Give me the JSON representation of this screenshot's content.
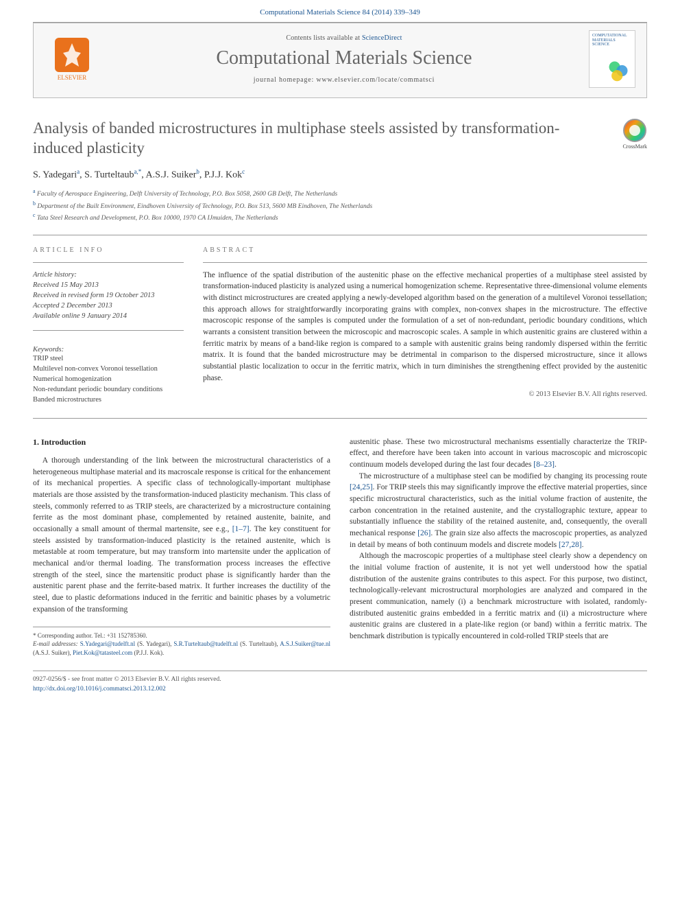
{
  "citation": "Computational Materials Science 84 (2014) 339–349",
  "header": {
    "contents_prefix": "Contents lists available at ",
    "contents_link": "ScienceDirect",
    "journal_title": "Computational Materials Science",
    "homepage_prefix": "journal homepage: ",
    "homepage_url": "www.elsevier.com/locate/commatsci",
    "publisher": "ELSEVIER",
    "thumb_label": "COMPUTATIONAL MATERIALS SCIENCE"
  },
  "crossmark_label": "CrossMark",
  "title": "Analysis of banded microstructures in multiphase steels assisted by transformation-induced plasticity",
  "authors_html": "S. Yadegari<sup>a</sup>, S. Turteltaub<sup>a,*</sup>, A.S.J. Suiker<sup>b</sup>, P.J.J. Kok<sup>c</sup>",
  "affiliations": [
    {
      "sup": "a",
      "text": "Faculty of Aerospace Engineering, Delft University of Technology, P.O. Box 5058, 2600 GB Delft, The Netherlands"
    },
    {
      "sup": "b",
      "text": "Department of the Built Environment, Eindhoven University of Technology, P.O. Box 513, 5600 MB Eindhoven, The Netherlands"
    },
    {
      "sup": "c",
      "text": "Tata Steel Research and Development, P.O. Box 10000, 1970 CA IJmuiden, The Netherlands"
    }
  ],
  "info_head": "ARTICLE INFO",
  "abs_head": "ABSTRACT",
  "history": {
    "label": "Article history:",
    "received": "Received 15 May 2013",
    "revised": "Received in revised form 19 October 2013",
    "accepted": "Accepted 2 December 2013",
    "online": "Available online 9 January 2014"
  },
  "keywords_label": "Keywords:",
  "keywords": [
    "TRIP steel",
    "Multilevel non-convex Voronoi tessellation",
    "Numerical homogenization",
    "Non-redundant periodic boundary conditions",
    "Banded microstructures"
  ],
  "abstract": "The influence of the spatial distribution of the austenitic phase on the effective mechanical properties of a multiphase steel assisted by transformation-induced plasticity is analyzed using a numerical homogenization scheme. Representative three-dimensional volume elements with distinct microstructures are created applying a newly-developed algorithm based on the generation of a multilevel Voronoi tessellation; this approach allows for straightforwardly incorporating grains with complex, non-convex shapes in the microstructure. The effective macroscopic response of the samples is computed under the formulation of a set of non-redundant, periodic boundary conditions, which warrants a consistent transition between the microscopic and macroscopic scales. A sample in which austenitic grains are clustered within a ferritic matrix by means of a band-like region is compared to a sample with austenitic grains being randomly dispersed within the ferritic matrix. It is found that the banded microstructure may be detrimental in comparison to the dispersed microstructure, since it allows substantial plastic localization to occur in the ferritic matrix, which in turn diminishes the strengthening effect provided by the austenitic phase.",
  "copyright": "© 2013 Elsevier B.V. All rights reserved.",
  "intro_head": "1. Introduction",
  "intro_p1_pre": "A thorough understanding of the link between the microstructural characteristics of a heterogeneous multiphase material and its macroscale response is critical for the enhancement of its mechanical properties. A specific class of technologically-important multiphase materials are those assisted by the transformation-induced plasticity mechanism. This class of steels, commonly referred to as TRIP steels, are characterized by a microstructure containing ferrite as the most dominant phase, complemented by retained austenite, bainite, and occasionally a small amount of thermal martensite, see e.g., ",
  "intro_p1_ref1": "[1–7]",
  "intro_p1_post": ". The key constituent for steels assisted by transformation-induced plasticity is the retained austenite, which is metastable at room temperature, but may transform into martensite under the application of mechanical and/or thermal loading. The transformation process increases the effective strength of the steel, since the martensitic product phase is significantly harder than the austenitic parent phase and the ferrite-based matrix. It further increases the ductility of the steel, due to plastic deformations induced in the ferritic and bainitic phases by a volumetric expansion of the transforming",
  "col2_p1_pre": "austenitic phase. These two microstructural mechanisms essentially characterize the TRIP-effect, and therefore have been taken into account in various macroscopic and microscopic continuum models developed during the last four decades ",
  "col2_p1_ref": "[8–23]",
  "col2_p1_post": ".",
  "col2_p2_pre": "The microstructure of a multiphase steel can be modified by changing its processing route ",
  "col2_p2_ref1": "[24,25]",
  "col2_p2_mid": ". For TRIP steels this may significantly improve the effective material properties, since specific microstructural characteristics, such as the initial volume fraction of austenite, the carbon concentration in the retained austenite, and the crystallographic texture, appear to substantially influence the stability of the retained austenite, and, consequently, the overall mechanical response ",
  "col2_p2_ref2": "[26]",
  "col2_p2_mid2": ". The grain size also affects the macroscopic properties, as analyzed in detail by means of both continuum models and discrete models ",
  "col2_p2_ref3": "[27,28]",
  "col2_p2_post": ".",
  "col2_p3": "Although the macroscopic properties of a multiphase steel clearly show a dependency on the initial volume fraction of austenite, it is not yet well understood how the spatial distribution of the austenite grains contributes to this aspect. For this purpose, two distinct, technologically-relevant microstructural morphologies are analyzed and compared in the present communication, namely (i) a benchmark microstructure with isolated, randomly-distributed austenitic grains embedded in a ferritic matrix and (ii) a microstructure where austenitic grains are clustered in a plate-like region (or band) within a ferritic matrix. The benchmark distribution is typically encountered in cold-rolled TRIP steels that are",
  "footnotes": {
    "corr": "* Corresponding author. Tel.: +31 152785360.",
    "email_label": "E-mail addresses:",
    "emails": [
      {
        "addr": "S.Yadegari@tudelft.nl",
        "who": "(S. Yadegari)"
      },
      {
        "addr": "S.R.Turteltaub@tudelft.nl",
        "who": "(S. Turteltaub)"
      },
      {
        "addr": "A.S.J.Suiker@tue.nl",
        "who": "(A.S.J. Suiker)"
      },
      {
        "addr": "Piet.Kok@tatasteel.com",
        "who": "(P.J.J. Kok)"
      }
    ]
  },
  "footer": {
    "issn_line": "0927-0256/$ - see front matter © 2013 Elsevier B.V. All rights reserved.",
    "doi": "http://dx.doi.org/10.1016/j.commatsci.2013.12.002"
  },
  "colors": {
    "link": "#1a5490",
    "orange": "#e9711c",
    "text": "#333333",
    "muted": "#777777"
  }
}
